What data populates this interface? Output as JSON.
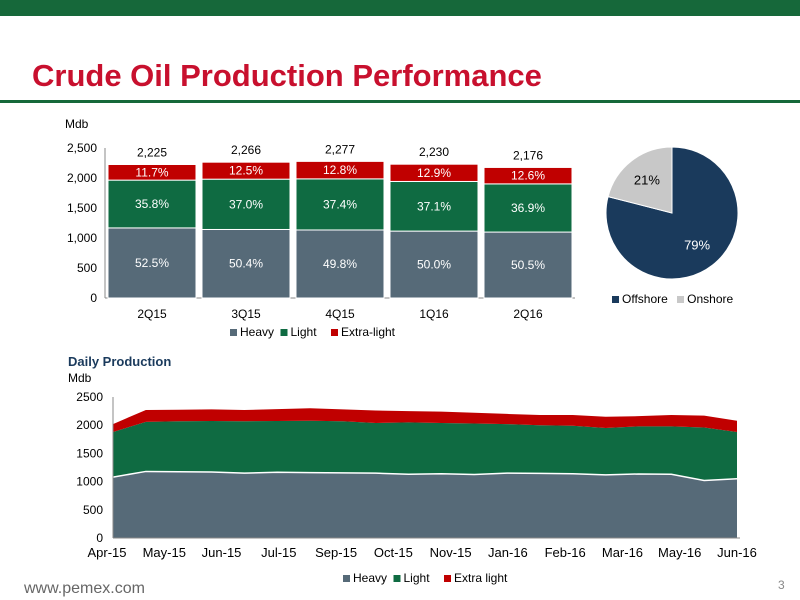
{
  "page": {
    "title": "Crude Oil Production Performance",
    "footer_url": "www.pemex.com",
    "page_number": "3"
  },
  "colors": {
    "brand_green": "#16683a",
    "title_red": "#c8102e",
    "heavy": "#566a78",
    "light": "#0f6b42",
    "extra_light": "#c00000",
    "offshore": "#1a3a5c",
    "onshore": "#c8c8c8"
  },
  "chart_data": [
    {
      "type": "bar",
      "ylabel": "Mdb",
      "ylim": [
        0,
        2500
      ],
      "yticks": [
        "0",
        "500",
        "1,000",
        "1,500",
        "2,000",
        "2,500"
      ],
      "categories": [
        "2Q15",
        "3Q15",
        "4Q15",
        "1Q16",
        "2Q16"
      ],
      "totals": [
        2225,
        2266,
        2277,
        2230,
        2176
      ],
      "total_labels": [
        "2,225",
        "2,266",
        "2,277",
        "2,230",
        "2,176"
      ],
      "series": [
        {
          "name": "Heavy",
          "color": "#566a78",
          "shares": [
            52.5,
            50.4,
            49.8,
            50.0,
            50.5
          ],
          "labels": [
            "52.5%",
            "50.4%",
            "49.8%",
            "50.0%",
            "50.5%"
          ]
        },
        {
          "name": "Light",
          "color": "#0f6b42",
          "shares": [
            35.8,
            37.0,
            37.4,
            37.1,
            36.9
          ],
          "labels": [
            "35.8%",
            "37.0%",
            "37.4%",
            "37.1%",
            "36.9%"
          ]
        },
        {
          "name": "Extra-light",
          "color": "#c00000",
          "shares": [
            11.7,
            12.5,
            12.8,
            12.9,
            12.6
          ],
          "labels": [
            "11.7%",
            "12.5%",
            "12.8%",
            "12.9%",
            "12.6%"
          ]
        }
      ],
      "legend": "bottom"
    },
    {
      "type": "pie",
      "slices": [
        {
          "name": "Offshore",
          "value": 79,
          "label": "79%",
          "color": "#1a3a5c"
        },
        {
          "name": "Onshore",
          "value": 21,
          "label": "21%",
          "color": "#c8c8c8"
        }
      ],
      "legend": "bottom"
    },
    {
      "type": "area",
      "title": "Daily Production",
      "ylabel": "Mdb",
      "ylim": [
        0,
        2500
      ],
      "yticks": [
        "0",
        "500",
        "1000",
        "1500",
        "2000",
        "2500"
      ],
      "xticks": [
        "Apr-15",
        "May-15",
        "Jun-15",
        "Jul-15",
        "Sep-15",
        "Oct-15",
        "Nov-15",
        "Jan-16",
        "Feb-16",
        "Mar-16",
        "May-16",
        "Jun-16"
      ],
      "series": [
        {
          "name": "Heavy",
          "color": "#566a78",
          "top": [
            1080,
            1180,
            1175,
            1170,
            1150,
            1165,
            1160,
            1155,
            1150,
            1130,
            1140,
            1125,
            1150,
            1145,
            1140,
            1120,
            1135,
            1130,
            1020,
            1050
          ]
        },
        {
          "name": "Light",
          "color": "#0f6b42",
          "top": [
            1880,
            2060,
            2070,
            2075,
            2070,
            2075,
            2080,
            2070,
            2040,
            2050,
            2040,
            2030,
            2020,
            2000,
            1990,
            1950,
            1980,
            1980,
            1960,
            1880
          ]
        },
        {
          "name": "Extra light",
          "color": "#c00000",
          "top": [
            2020,
            2270,
            2275,
            2280,
            2270,
            2285,
            2300,
            2280,
            2260,
            2250,
            2240,
            2220,
            2200,
            2180,
            2180,
            2150,
            2160,
            2180,
            2170,
            2080
          ]
        }
      ],
      "legend": "bottom"
    }
  ]
}
